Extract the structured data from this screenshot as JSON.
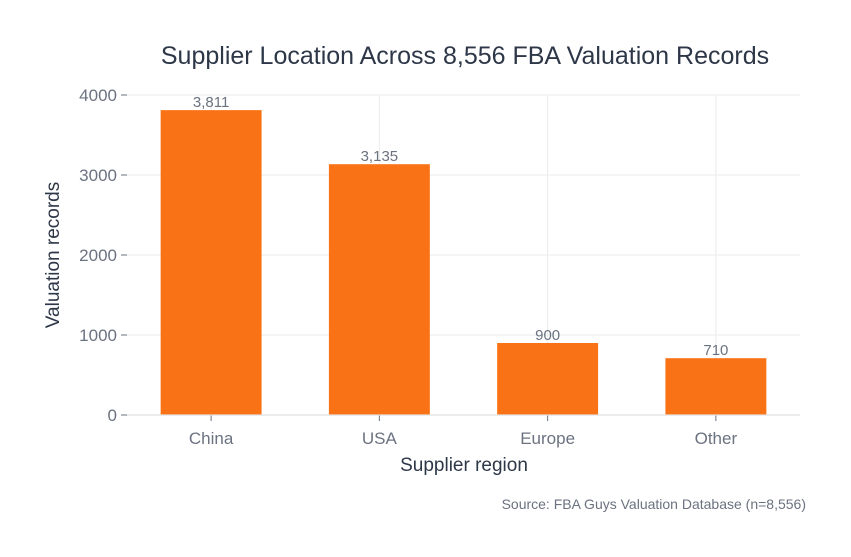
{
  "chart_data": {
    "type": "bar",
    "title": "Supplier Location Across 8,556 FBA Valuation Records",
    "xlabel": "Supplier region",
    "ylabel": "Valuation records",
    "categories": [
      "China",
      "USA",
      "Europe",
      "Other"
    ],
    "values": [
      3811,
      3135,
      900,
      710
    ],
    "value_labels": [
      "3,811",
      "3,135",
      "900",
      "710"
    ],
    "ylim": [
      0,
      4000
    ],
    "yticks": [
      0,
      1000,
      2000,
      3000,
      4000
    ],
    "grid": true,
    "bar_color": "#f97316",
    "source": "Source: FBA Guys Valuation Database (n=8,556)"
  }
}
